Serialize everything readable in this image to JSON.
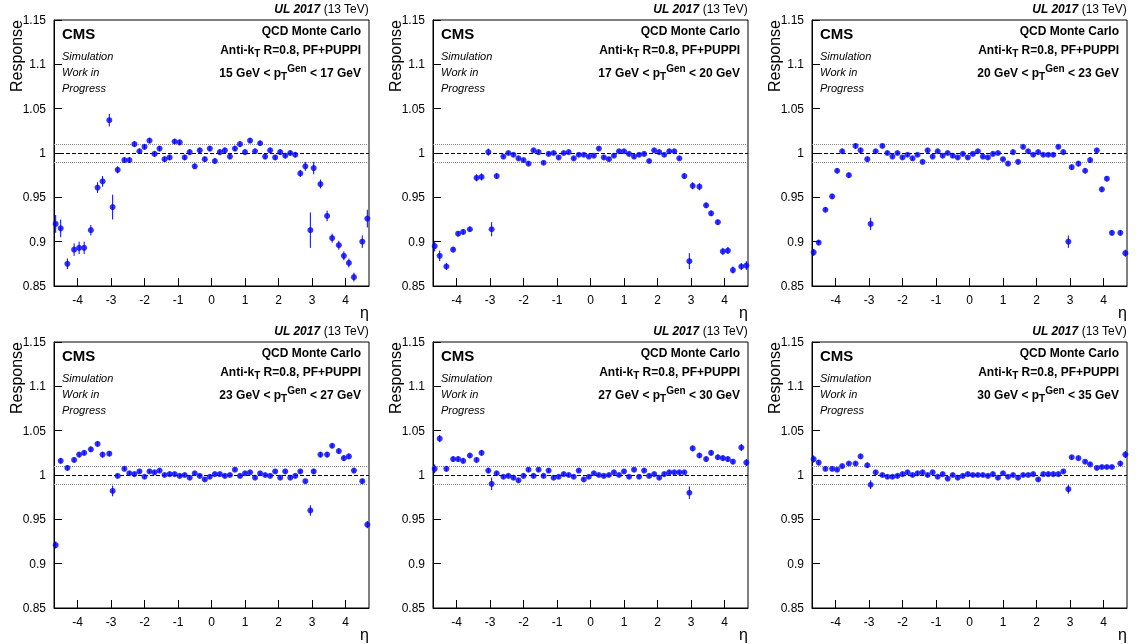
{
  "chart_data": [
    {
      "type": "scatter",
      "title": "UL 2017",
      "subtitle": "(13 TeV)",
      "xlabel": "η",
      "ylabel": "Response",
      "marker": "circle",
      "xlim": [
        -4.7,
        4.7
      ],
      "ylim": [
        0.85,
        1.15
      ],
      "xticks": [
        -4,
        -3,
        -2,
        -1,
        0,
        1,
        2,
        3,
        4
      ],
      "yticks": [
        0.85,
        0.9,
        0.95,
        1,
        1.05,
        1.1,
        1.15
      ],
      "annotations": [
        "CMS",
        "Simulation\nWork in\nProgress",
        "QCD Monte Carlo",
        "Anti-k$_{T}$ R=0.8, PF+PUPPI",
        "15 GeV < p$_{T}$$^{Gen}$ < 17 GeV"
      ],
      "ref_lines": [
        {
          "axis": "y",
          "value": 1.01,
          "color": "#888888",
          "line_style": "dotted"
        },
        {
          "axis": "y",
          "value": 1,
          "color": "#000000",
          "line_style": "dashed"
        },
        {
          "axis": "y",
          "value": 0.99,
          "color": "#888888",
          "line_style": "dotted"
        }
      ],
      "x": [
        -4.65,
        -4.5,
        -4.3,
        -4.1,
        -3.95,
        -3.8,
        -3.6,
        -3.4,
        -3.25,
        -3.05,
        -2.95,
        -2.8,
        -2.6,
        -2.45,
        -2.3,
        -2.15,
        -2.0,
        -1.85,
        -1.7,
        -1.55,
        -1.4,
        -1.25,
        -1.1,
        -0.95,
        -0.8,
        -0.65,
        -0.5,
        -0.35,
        -0.2,
        -0.05,
        0.1,
        0.25,
        0.4,
        0.55,
        0.7,
        0.85,
        1.0,
        1.15,
        1.3,
        1.45,
        1.6,
        1.75,
        1.9,
        2.05,
        2.2,
        2.35,
        2.5,
        2.65,
        2.8,
        2.95,
        3.05,
        3.25,
        3.45,
        3.6,
        3.8,
        3.95,
        4.1,
        4.25,
        4.5,
        4.65
      ],
      "series": [
        {
          "color": "#0000ff",
          "values": [
            0.92,
            0.915,
            0.875,
            0.891,
            0.893,
            0.893,
            0.913,
            0.961,
            0.968,
            1.037,
            0.939,
            0.981,
            0.992,
            0.992,
            1.01,
            1.002,
            1.007,
            1.014,
            0.999,
            1.005,
            0.993,
            0.995,
            1.013,
            1.012,
            0.995,
            1.001,
            0.985,
            1.003,
            0.993,
            1.005,
            0.991,
            1.001,
            1.003,
            0.996,
            1.005,
            1.01,
            1.001,
            1.014,
            1.002,
            1.011,
            0.996,
            1.003,
            0.995,
            1.001,
            0.997,
            1.0,
            0.998,
            0.977,
            0.985,
            0.913,
            0.983,
            0.965,
            0.929,
            0.904,
            0.896,
            0.884,
            0.876,
            0.86,
            0.9,
            0.926
          ],
          "errors": [
            0.01,
            0.01,
            0.006,
            0.007,
            0.007,
            0.007,
            0.006,
            0.006,
            0.006,
            0.007,
            0.014,
            0.004,
            0.003,
            0.003,
            0.003,
            0.003,
            0.003,
            0.003,
            0.003,
            0.003,
            0.003,
            0.003,
            0.003,
            0.003,
            0.003,
            0.003,
            0.003,
            0.003,
            0.003,
            0.003,
            0.003,
            0.003,
            0.003,
            0.003,
            0.003,
            0.003,
            0.003,
            0.003,
            0.003,
            0.003,
            0.003,
            0.003,
            0.003,
            0.003,
            0.003,
            0.003,
            0.003,
            0.004,
            0.005,
            0.02,
            0.007,
            0.005,
            0.006,
            0.005,
            0.005,
            0.005,
            0.005,
            0.005,
            0.007,
            0.01
          ]
        }
      ]
    },
    {
      "type": "scatter",
      "title": "UL 2017",
      "subtitle": "(13 TeV)",
      "xlabel": "η",
      "ylabel": "Response",
      "marker": "circle",
      "xlim": [
        -4.7,
        4.7
      ],
      "ylim": [
        0.85,
        1.15
      ],
      "xticks": [
        -4,
        -3,
        -2,
        -1,
        0,
        1,
        2,
        3,
        4
      ],
      "yticks": [
        0.85,
        0.9,
        0.95,
        1,
        1.05,
        1.1,
        1.15
      ],
      "annotations": [
        "CMS",
        "Simulation\nWork in\nProgress",
        "QCD Monte Carlo",
        "Anti-k$_{T}$ R=0.8, PF+PUPPI",
        "17 GeV < p$_{T}$$^{Gen}$ < 20 GeV"
      ],
      "ref_lines": [
        {
          "axis": "y",
          "value": 1.01,
          "color": "#888888",
          "line_style": "dotted"
        },
        {
          "axis": "y",
          "value": 1,
          "color": "#000000",
          "line_style": "dashed"
        },
        {
          "axis": "y",
          "value": 0.99,
          "color": "#888888",
          "line_style": "dotted"
        }
      ],
      "x": [
        -4.65,
        -4.5,
        -4.3,
        -4.1,
        -3.95,
        -3.8,
        -3.6,
        -3.4,
        -3.25,
        -3.05,
        -2.95,
        -2.8,
        -2.6,
        -2.45,
        -2.3,
        -2.15,
        -2.0,
        -1.85,
        -1.7,
        -1.55,
        -1.4,
        -1.25,
        -1.1,
        -0.95,
        -0.8,
        -0.65,
        -0.5,
        -0.35,
        -0.2,
        -0.05,
        0.1,
        0.25,
        0.4,
        0.55,
        0.7,
        0.85,
        1.0,
        1.15,
        1.3,
        1.45,
        1.6,
        1.75,
        1.9,
        2.05,
        2.2,
        2.35,
        2.5,
        2.65,
        2.8,
        2.95,
        3.05,
        3.25,
        3.45,
        3.6,
        3.8,
        3.95,
        4.1,
        4.25,
        4.5,
        4.65
      ],
      "series": [
        {
          "color": "#0000ff",
          "values": [
            0.895,
            0.884,
            0.872,
            0.891,
            0.909,
            0.911,
            0.914,
            0.972,
            0.973,
            1.001,
            0.914,
            0.974,
            0.996,
            1.0,
            0.998,
            0.994,
            0.992,
            0.988,
            1.003,
            1.001,
            0.989,
            0.999,
            1.0,
            0.995,
            1.0,
            1.001,
            0.994,
            0.998,
            0.998,
            0.996,
            0.997,
            1.005,
            0.995,
            0.993,
            0.997,
            1.002,
            1.002,
            0.999,
            0.996,
            0.998,
            0.999,
            0.991,
            1.003,
            1.001,
            0.998,
            1.002,
            1.002,
            0.994,
            0.974,
            0.878,
            0.963,
            0.962,
            0.941,
            0.932,
            0.922,
            0.889,
            0.89,
            0.868,
            0.872,
            0.873
          ],
          "errors": [
            0.006,
            0.006,
            0.004,
            0.003,
            0.003,
            0.003,
            0.003,
            0.004,
            0.004,
            0.004,
            0.008,
            0.003,
            0.002,
            0.002,
            0.002,
            0.002,
            0.002,
            0.002,
            0.002,
            0.002,
            0.002,
            0.002,
            0.002,
            0.002,
            0.002,
            0.002,
            0.002,
            0.002,
            0.002,
            0.002,
            0.002,
            0.002,
            0.002,
            0.002,
            0.002,
            0.002,
            0.002,
            0.002,
            0.002,
            0.002,
            0.002,
            0.002,
            0.002,
            0.002,
            0.002,
            0.002,
            0.002,
            0.002,
            0.003,
            0.009,
            0.004,
            0.004,
            0.003,
            0.003,
            0.003,
            0.004,
            0.004,
            0.004,
            0.004,
            0.005
          ]
        }
      ]
    },
    {
      "type": "scatter",
      "title": "UL 2017",
      "subtitle": "(13 TeV)",
      "xlabel": "η",
      "ylabel": "Response",
      "marker": "circle",
      "xlim": [
        -4.7,
        4.7
      ],
      "ylim": [
        0.85,
        1.15
      ],
      "xticks": [
        -4,
        -3,
        -2,
        -1,
        0,
        1,
        2,
        3,
        4
      ],
      "yticks": [
        0.85,
        0.9,
        0.95,
        1,
        1.05,
        1.1,
        1.15
      ],
      "annotations": [
        "CMS",
        "Simulation\nWork in\nProgress",
        "QCD Monte Carlo",
        "Anti-k$_{T}$ R=0.8, PF+PUPPI",
        "20 GeV < p$_{T}$$^{Gen}$ < 23 GeV"
      ],
      "ref_lines": [
        {
          "axis": "y",
          "value": 1.01,
          "color": "#888888",
          "line_style": "dotted"
        },
        {
          "axis": "y",
          "value": 1,
          "color": "#000000",
          "line_style": "dashed"
        },
        {
          "axis": "y",
          "value": 0.99,
          "color": "#888888",
          "line_style": "dotted"
        }
      ],
      "x": [
        -4.65,
        -4.5,
        -4.3,
        -4.1,
        -3.95,
        -3.8,
        -3.6,
        -3.4,
        -3.25,
        -3.05,
        -2.95,
        -2.8,
        -2.6,
        -2.45,
        -2.3,
        -2.15,
        -2.0,
        -1.85,
        -1.7,
        -1.55,
        -1.4,
        -1.25,
        -1.1,
        -0.95,
        -0.8,
        -0.65,
        -0.5,
        -0.35,
        -0.2,
        -0.05,
        0.1,
        0.25,
        0.4,
        0.55,
        0.7,
        0.85,
        1.0,
        1.15,
        1.3,
        1.45,
        1.6,
        1.75,
        1.9,
        2.05,
        2.2,
        2.35,
        2.5,
        2.65,
        2.8,
        2.95,
        3.05,
        3.25,
        3.45,
        3.6,
        3.8,
        3.95,
        4.1,
        4.25,
        4.5,
        4.65
      ],
      "series": [
        {
          "color": "#0000ff",
          "values": [
            0.888,
            0.899,
            0.936,
            0.951,
            0.98,
            1.002,
            0.975,
            1.008,
            1.003,
            0.993,
            0.92,
            1.002,
            1.008,
            1.0,
            0.996,
            1.0,
            0.995,
            0.998,
            0.994,
            0.998,
            0.99,
            1.003,
            0.996,
            1.002,
            0.997,
            1.0,
            0.997,
            0.995,
            0.999,
            0.995,
            0.999,
            1.002,
            0.996,
            0.995,
            0.999,
            1.0,
            0.993,
            0.988,
            1.001,
            0.99,
            1.007,
            1.002,
            0.998,
            1.001,
            0.998,
            0.998,
            0.998,
            1.007,
            1.001,
            0.9,
            0.984,
            0.988,
            0.98,
            0.992,
            1.003,
            0.959,
            0.971,
            0.91,
            0.91,
            0.887
          ],
          "errors": [
            0.004,
            0.003,
            0.003,
            0.003,
            0.003,
            0.003,
            0.003,
            0.003,
            0.003,
            0.003,
            0.007,
            0.002,
            0.002,
            0.002,
            0.002,
            0.002,
            0.002,
            0.002,
            0.002,
            0.002,
            0.002,
            0.002,
            0.002,
            0.002,
            0.002,
            0.002,
            0.002,
            0.002,
            0.002,
            0.002,
            0.002,
            0.002,
            0.002,
            0.002,
            0.002,
            0.002,
            0.002,
            0.002,
            0.002,
            0.002,
            0.002,
            0.002,
            0.002,
            0.002,
            0.002,
            0.002,
            0.002,
            0.002,
            0.002,
            0.007,
            0.003,
            0.003,
            0.003,
            0.003,
            0.002,
            0.003,
            0.003,
            0.003,
            0.003,
            0.004
          ]
        }
      ]
    },
    {
      "type": "scatter",
      "title": "UL 2017",
      "subtitle": "(13 TeV)",
      "xlabel": "η",
      "ylabel": "Response",
      "marker": "circle",
      "xlim": [
        -4.7,
        4.7
      ],
      "ylim": [
        0.85,
        1.15
      ],
      "xticks": [
        -4,
        -3,
        -2,
        -1,
        0,
        1,
        2,
        3,
        4
      ],
      "yticks": [
        0.85,
        0.9,
        0.95,
        1,
        1.05,
        1.1,
        1.15
      ],
      "annotations": [
        "CMS",
        "Simulation\nWork in\nProgress",
        "QCD Monte Carlo",
        "Anti-k$_{T}$ R=0.8, PF+PUPPI",
        "23 GeV < p$_{T}$$^{Gen}$ < 27 GeV"
      ],
      "ref_lines": [
        {
          "axis": "y",
          "value": 1.01,
          "color": "#888888",
          "line_style": "dotted"
        },
        {
          "axis": "y",
          "value": 1,
          "color": "#000000",
          "line_style": "dashed"
        },
        {
          "axis": "y",
          "value": 0.99,
          "color": "#888888",
          "line_style": "dotted"
        }
      ],
      "x": [
        -4.65,
        -4.5,
        -4.3,
        -4.1,
        -3.95,
        -3.8,
        -3.6,
        -3.4,
        -3.25,
        -3.05,
        -2.95,
        -2.8,
        -2.6,
        -2.45,
        -2.3,
        -2.15,
        -2.0,
        -1.85,
        -1.7,
        -1.55,
        -1.4,
        -1.25,
        -1.1,
        -0.95,
        -0.8,
        -0.65,
        -0.5,
        -0.35,
        -0.2,
        -0.05,
        0.1,
        0.25,
        0.4,
        0.55,
        0.7,
        0.85,
        1.0,
        1.15,
        1.3,
        1.45,
        1.6,
        1.75,
        1.9,
        2.05,
        2.2,
        2.35,
        2.5,
        2.65,
        2.8,
        2.95,
        3.05,
        3.25,
        3.45,
        3.6,
        3.8,
        3.95,
        4.1,
        4.25,
        4.5,
        4.65
      ],
      "series": [
        {
          "color": "#0000ff",
          "values": [
            0.921,
            1.016,
            1.008,
            1.017,
            1.023,
            1.025,
            1.029,
            1.035,
            1.023,
            1.024,
            0.982,
            0.999,
            1.007,
            1.002,
            1.001,
            1.004,
            0.998,
            1.004,
            1.003,
            1.005,
            1.0,
            1.001,
            1.001,
            0.999,
            1.0,
            0.997,
            1.002,
            0.999,
            0.995,
            0.998,
            1.001,
            1.001,
            0.999,
            1.0,
            1.006,
            0.999,
            1.002,
            1.003,
            0.997,
            1.002,
            1.0,
            0.999,
            1.004,
            0.997,
            1.004,
            0.997,
            0.999,
            1.004,
            0.993,
            0.96,
            1.004,
            1.023,
            1.023,
            1.033,
            1.027,
            1.019,
            1.021,
            1.005,
            0.993,
            0.944
          ],
          "errors": [
            0.004,
            0.003,
            0.003,
            0.003,
            0.003,
            0.003,
            0.003,
            0.003,
            0.003,
            0.003,
            0.006,
            0.002,
            0.002,
            0.002,
            0.002,
            0.002,
            0.002,
            0.002,
            0.002,
            0.002,
            0.002,
            0.002,
            0.002,
            0.002,
            0.002,
            0.002,
            0.002,
            0.002,
            0.002,
            0.002,
            0.002,
            0.002,
            0.002,
            0.002,
            0.002,
            0.002,
            0.002,
            0.002,
            0.002,
            0.002,
            0.002,
            0.002,
            0.002,
            0.002,
            0.002,
            0.002,
            0.002,
            0.002,
            0.002,
            0.006,
            0.003,
            0.003,
            0.003,
            0.003,
            0.003,
            0.003,
            0.003,
            0.003,
            0.003,
            0.004
          ]
        }
      ]
    },
    {
      "type": "scatter",
      "title": "UL 2017",
      "subtitle": "(13 TeV)",
      "xlabel": "η",
      "ylabel": "Response",
      "marker": "circle",
      "xlim": [
        -4.7,
        4.7
      ],
      "ylim": [
        0.85,
        1.15
      ],
      "xticks": [
        -4,
        -3,
        -2,
        -1,
        0,
        1,
        2,
        3,
        4
      ],
      "yticks": [
        0.85,
        0.9,
        0.95,
        1,
        1.05,
        1.1,
        1.15
      ],
      "annotations": [
        "CMS",
        "Simulation\nWork in\nProgress",
        "QCD Monte Carlo",
        "Anti-k$_{T}$ R=0.8, PF+PUPPI",
        "27 GeV < p$_{T}$$^{Gen}$ < 30 GeV"
      ],
      "ref_lines": [
        {
          "axis": "y",
          "value": 1.01,
          "color": "#888888",
          "line_style": "dotted"
        },
        {
          "axis": "y",
          "value": 1,
          "color": "#000000",
          "line_style": "dashed"
        },
        {
          "axis": "y",
          "value": 0.99,
          "color": "#888888",
          "line_style": "dotted"
        }
      ],
      "x": [
        -4.65,
        -4.5,
        -4.3,
        -4.1,
        -3.95,
        -3.8,
        -3.6,
        -3.4,
        -3.25,
        -3.05,
        -2.95,
        -2.8,
        -2.6,
        -2.45,
        -2.3,
        -2.15,
        -2.0,
        -1.85,
        -1.7,
        -1.55,
        -1.4,
        -1.25,
        -1.1,
        -0.95,
        -0.8,
        -0.65,
        -0.5,
        -0.35,
        -0.2,
        -0.05,
        0.1,
        0.25,
        0.4,
        0.55,
        0.7,
        0.85,
        1.0,
        1.15,
        1.3,
        1.45,
        1.6,
        1.75,
        1.9,
        2.05,
        2.2,
        2.35,
        2.5,
        2.65,
        2.8,
        2.95,
        3.05,
        3.25,
        3.45,
        3.6,
        3.8,
        3.95,
        4.1,
        4.25,
        4.5,
        4.65
      ],
      "series": [
        {
          "color": "#0000ff",
          "values": [
            1.007,
            1.041,
            1.007,
            1.018,
            1.018,
            1.016,
            1.022,
            1.017,
            1.025,
            1.005,
            0.99,
            1.002,
            0.998,
            0.999,
            0.997,
            0.994,
            0.999,
            1.006,
            0.999,
            1.006,
            0.999,
            1.005,
            0.997,
            0.998,
            1.001,
            1.0,
            0.998,
            1.005,
            0.995,
            0.998,
            1.002,
            1.0,
            0.999,
            1.0,
            1.003,
            1.0,
            1.004,
            0.998,
            1.006,
            0.998,
            1.005,
            0.999,
            1.001,
            0.997,
            1.001,
            1.003,
            1.003,
            1.003,
            1.003,
            0.98,
            1.03,
            1.022,
            1.018,
            1.025,
            1.02,
            1.019,
            1.018,
            1.015,
            1.031,
            1.014
          ],
          "errors": [
            0.005,
            0.004,
            0.003,
            0.003,
            0.003,
            0.003,
            0.003,
            0.003,
            0.003,
            0.003,
            0.007,
            0.002,
            0.002,
            0.002,
            0.002,
            0.002,
            0.002,
            0.002,
            0.002,
            0.002,
            0.002,
            0.002,
            0.002,
            0.002,
            0.002,
            0.002,
            0.002,
            0.002,
            0.002,
            0.002,
            0.002,
            0.002,
            0.002,
            0.002,
            0.002,
            0.002,
            0.002,
            0.002,
            0.002,
            0.002,
            0.002,
            0.002,
            0.002,
            0.002,
            0.002,
            0.002,
            0.002,
            0.002,
            0.002,
            0.007,
            0.003,
            0.003,
            0.003,
            0.003,
            0.003,
            0.003,
            0.003,
            0.003,
            0.004,
            0.004
          ]
        }
      ]
    },
    {
      "type": "scatter",
      "title": "UL 2017",
      "subtitle": "(13 TeV)",
      "xlabel": "η",
      "ylabel": "Response",
      "marker": "circle",
      "xlim": [
        -4.7,
        4.7
      ],
      "ylim": [
        0.85,
        1.15
      ],
      "xticks": [
        -4,
        -3,
        -2,
        -1,
        0,
        1,
        2,
        3,
        4
      ],
      "yticks": [
        0.85,
        0.9,
        0.95,
        1,
        1.05,
        1.1,
        1.15
      ],
      "annotations": [
        "CMS",
        "Simulation\nWork in\nProgress",
        "QCD Monte Carlo",
        "Anti-k$_{T}$ R=0.8, PF+PUPPI",
        "30 GeV < p$_{T}$$^{Gen}$ < 35 GeV"
      ],
      "ref_lines": [
        {
          "axis": "y",
          "value": 1.01,
          "color": "#888888",
          "line_style": "dotted"
        },
        {
          "axis": "y",
          "value": 1,
          "color": "#000000",
          "line_style": "dashed"
        },
        {
          "axis": "y",
          "value": 0.99,
          "color": "#888888",
          "line_style": "dotted"
        }
      ],
      "x": [
        -4.65,
        -4.5,
        -4.3,
        -4.1,
        -3.95,
        -3.8,
        -3.6,
        -3.4,
        -3.25,
        -3.05,
        -2.95,
        -2.8,
        -2.6,
        -2.45,
        -2.3,
        -2.15,
        -2.0,
        -1.85,
        -1.7,
        -1.55,
        -1.4,
        -1.25,
        -1.1,
        -0.95,
        -0.8,
        -0.65,
        -0.5,
        -0.35,
        -0.2,
        -0.05,
        0.1,
        0.25,
        0.4,
        0.55,
        0.7,
        0.85,
        1.0,
        1.15,
        1.3,
        1.45,
        1.6,
        1.75,
        1.9,
        2.05,
        2.2,
        2.35,
        2.5,
        2.65,
        2.8,
        2.95,
        3.05,
        3.25,
        3.45,
        3.6,
        3.8,
        3.95,
        4.1,
        4.25,
        4.5,
        4.65
      ],
      "series": [
        {
          "color": "#0000ff",
          "values": [
            1.018,
            1.014,
            1.007,
            1.007,
            1.006,
            1.01,
            1.013,
            1.013,
            1.021,
            1.011,
            0.989,
            1.003,
            1.0,
            0.998,
            0.998,
            0.999,
            1.001,
            1.003,
            1.0,
            1.002,
            1.003,
            1.0,
            1.003,
            0.998,
            1.001,
            0.996,
            1.0,
            0.997,
            0.999,
            1.001,
            1.0,
            1.0,
            1.0,
            0.999,
            1.001,
            0.997,
            1.002,
            0.998,
            1.0,
            0.997,
            1.0,
            1.0,
            1.001,
            0.995,
            1.001,
            1.001,
            1.001,
            1.001,
            1.004,
            0.984,
            1.02,
            1.019,
            1.015,
            1.012,
            1.008,
            1.009,
            1.009,
            1.009,
            1.013,
            1.023
          ],
          "errors": [
            0.004,
            0.003,
            0.002,
            0.002,
            0.002,
            0.002,
            0.002,
            0.002,
            0.002,
            0.003,
            0.005,
            0.002,
            0.002,
            0.002,
            0.002,
            0.002,
            0.002,
            0.002,
            0.002,
            0.002,
            0.002,
            0.002,
            0.002,
            0.002,
            0.002,
            0.002,
            0.002,
            0.002,
            0.002,
            0.002,
            0.002,
            0.002,
            0.002,
            0.002,
            0.002,
            0.002,
            0.002,
            0.002,
            0.002,
            0.002,
            0.002,
            0.002,
            0.002,
            0.002,
            0.002,
            0.002,
            0.002,
            0.002,
            0.002,
            0.005,
            0.002,
            0.002,
            0.002,
            0.002,
            0.002,
            0.002,
            0.002,
            0.002,
            0.003,
            0.004
          ]
        }
      ]
    }
  ]
}
